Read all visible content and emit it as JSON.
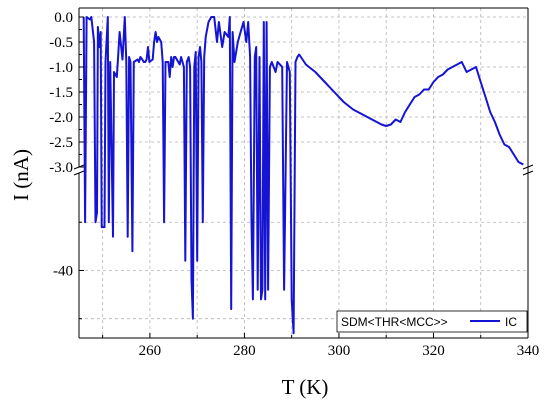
{
  "chart_data": {
    "type": "line",
    "xlabel": "T (K)",
    "ylabel": "I (nA)",
    "xlim": [
      245,
      340
    ],
    "ylim_upper": [
      -3.0,
      0.1
    ],
    "ylim_lower": [
      -54,
      -20
    ],
    "y_axis_break": true,
    "grid": true,
    "legend_position": "bottom-right",
    "x_ticks": [
      "260",
      "280",
      "300",
      "320",
      "340"
    ],
    "y_ticks_upper": [
      "0.0",
      "-0.5",
      "-1.0",
      "-1.5",
      "-2.0",
      "-2.5",
      "-3.0"
    ],
    "y_ticks_lower": [
      "-40"
    ],
    "legend_prefix": "SDM<THR<MCC>>",
    "colors": {
      "line": "#1414d2",
      "grid": "#b4b4b4",
      "axis": "#000000"
    },
    "series": [
      {
        "name": "IC",
        "x": [
          246.0,
          246.3,
          246.6,
          247.3,
          247.6,
          248.2,
          248.5,
          248.8,
          249.0,
          249.3,
          249.6,
          249.8,
          250.4,
          250.6,
          251.1,
          251.3,
          251.6,
          252.2,
          252.4,
          253.0,
          253.2,
          253.6,
          254.2,
          254.7,
          255.0,
          255.3,
          255.6,
          255.9,
          256.3,
          256.6,
          257.4,
          257.7,
          258.0,
          258.4,
          258.7,
          259.0,
          259.3,
          259.6,
          259.9,
          260.6,
          260.9,
          261.2,
          261.5,
          261.8,
          262.4,
          262.7,
          263.0,
          263.3,
          263.9,
          264.2,
          264.5,
          264.8,
          265.1,
          265.4,
          266.0,
          266.3,
          266.6,
          267.2,
          267.5,
          267.8,
          268.2,
          268.5,
          268.8,
          269.1,
          269.4,
          269.7,
          270.0,
          270.3,
          270.6,
          270.9,
          271.2,
          271.5,
          271.8,
          272.4,
          273.0,
          273.6,
          274.2,
          274.6,
          275.3,
          275.8,
          276.6,
          276.9,
          277.2,
          277.5,
          277.9,
          278.6,
          279.2,
          279.8,
          280.4,
          280.8,
          281.2,
          281.5,
          281.8,
          282.2,
          282.5,
          282.8,
          283.2,
          283.5,
          283.8,
          284.1,
          284.4,
          284.7,
          285.0,
          285.4,
          285.8,
          286.6,
          287.0,
          287.5,
          288.0,
          288.4,
          289.0,
          289.6,
          290.0,
          290.4,
          290.8,
          291.2,
          291.6,
          293.0,
          295.0,
          297.0,
          299.0,
          301.0,
          303.0,
          305.0,
          306.0,
          307.0,
          308.0,
          309.0,
          310.0,
          311.0,
          312.0,
          313.0,
          314.0,
          315.0,
          316.0,
          317.0,
          318.0,
          319.0,
          320.0,
          321.0,
          322.0,
          323.0,
          324.0,
          325.0,
          326.0,
          327.0,
          328.0,
          329.0,
          330.0,
          331.0,
          332.0,
          333.0,
          334.0,
          335.0,
          336.0,
          337.0,
          338.0,
          339.0
        ],
        "y": [
          0.0,
          -30.0,
          0.0,
          -0.05,
          0.0,
          -0.5,
          -30.0,
          -28.0,
          -0.2,
          -0.6,
          -0.3,
          -31.0,
          -31.0,
          -0.9,
          0.0,
          -30.0,
          -0.9,
          -33.0,
          -1.1,
          -1.2,
          -0.9,
          -0.3,
          -0.85,
          0.0,
          -0.9,
          -33.0,
          -0.8,
          -0.9,
          -36.0,
          -0.9,
          -0.85,
          -0.9,
          -0.8,
          -0.85,
          -0.9,
          -0.9,
          -0.85,
          -0.6,
          -0.9,
          -0.85,
          -0.5,
          -0.3,
          -0.5,
          -0.4,
          -0.5,
          -0.9,
          -30.0,
          -0.9,
          -0.9,
          -1.2,
          -0.8,
          -1.0,
          -0.8,
          -0.8,
          -0.9,
          -0.95,
          -0.8,
          -1.0,
          -38.0,
          -0.9,
          -0.8,
          -1.0,
          -42.0,
          -50.0,
          -1.0,
          -0.7,
          -38.0,
          -0.8,
          -0.6,
          -0.9,
          -30.0,
          -0.8,
          -0.4,
          -0.1,
          0.0,
          0.0,
          -0.5,
          -0.1,
          -0.6,
          -0.3,
          -0.4,
          0.0,
          -48.0,
          -0.3,
          -0.9,
          -0.5,
          -0.3,
          -0.1,
          -0.5,
          -0.1,
          -0.8,
          -30.0,
          -46.0,
          -0.8,
          -0.6,
          -44.0,
          -0.8,
          -46.0,
          -44.0,
          -0.1,
          -46.0,
          -0.1,
          -44.0,
          -1.0,
          -0.9,
          -1.1,
          -0.9,
          -0.95,
          -1.0,
          -44.0,
          -0.9,
          -1.1,
          -46.0,
          -53.0,
          -0.9,
          -0.8,
          -0.75,
          -0.95,
          -1.1,
          -1.3,
          -1.5,
          -1.7,
          -1.85,
          -1.95,
          -2.0,
          -2.05,
          -2.1,
          -2.15,
          -2.18,
          -2.15,
          -2.05,
          -2.1,
          -1.9,
          -1.75,
          -1.6,
          -1.55,
          -1.45,
          -1.45,
          -1.3,
          -1.2,
          -1.15,
          -1.05,
          -1.0,
          -0.95,
          -0.9,
          -1.1,
          -1.05,
          -1.0,
          -1.3,
          -1.6,
          -1.9,
          -2.1,
          -2.35,
          -2.55,
          -2.6,
          -2.75,
          -2.9,
          -2.95
        ]
      }
    ]
  }
}
